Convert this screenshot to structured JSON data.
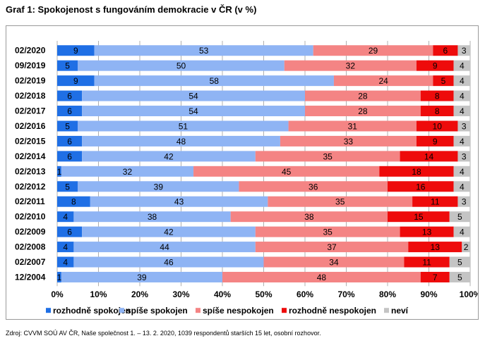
{
  "title": "Graf 1: Spokojenost s fungováním demokracie v ČR (v %)",
  "source": "Zdroj: CVVM SOÚ AV ČR, Naše společnost 1. – 13. 2. 2020, 1039 respondentů starších 15 let, osobní rozhovor.",
  "chart_data": {
    "type": "bar",
    "orientation": "horizontal",
    "stacked": true,
    "percent": true,
    "categories": [
      "02/2020",
      "09/2019",
      "02/2019",
      "02/2018",
      "02/2017",
      "02/2016",
      "02/2015",
      "02/2014",
      "02/2013",
      "02/2012",
      "02/2011",
      "02/2010",
      "02/2009",
      "02/2008",
      "02/2007",
      "12/2004"
    ],
    "series": [
      {
        "name": "rozhodně spokojen",
        "color": "#1f6fe5",
        "values": [
          9,
          5,
          9,
          6,
          6,
          5,
          6,
          6,
          1,
          5,
          8,
          4,
          6,
          4,
          4,
          1
        ]
      },
      {
        "name": "spíše spokojen",
        "color": "#8fb4f4",
        "values": [
          53,
          50,
          58,
          54,
          54,
          51,
          48,
          42,
          32,
          39,
          43,
          38,
          42,
          44,
          46,
          39
        ]
      },
      {
        "name": "spíše nespokojen",
        "color": "#f48484",
        "values": [
          29,
          32,
          24,
          28,
          28,
          31,
          33,
          35,
          45,
          36,
          35,
          38,
          35,
          37,
          34,
          48
        ]
      },
      {
        "name": "rozhodně nespokojen",
        "color": "#ee0b0b",
        "values": [
          6,
          9,
          5,
          8,
          8,
          10,
          9,
          14,
          18,
          16,
          11,
          15,
          13,
          13,
          11,
          7
        ]
      },
      {
        "name": "neví",
        "color": "#c4c4c4",
        "values": [
          3,
          4,
          4,
          4,
          4,
          3,
          4,
          3,
          4,
          4,
          3,
          5,
          4,
          2,
          5,
          5
        ]
      }
    ],
    "xlim": [
      0,
      100
    ],
    "xticks": [
      "0%",
      "10%",
      "20%",
      "30%",
      "40%",
      "50%",
      "60%",
      "70%",
      "80%",
      "90%",
      "100%"
    ],
    "grid": true,
    "legend": "bottom"
  }
}
